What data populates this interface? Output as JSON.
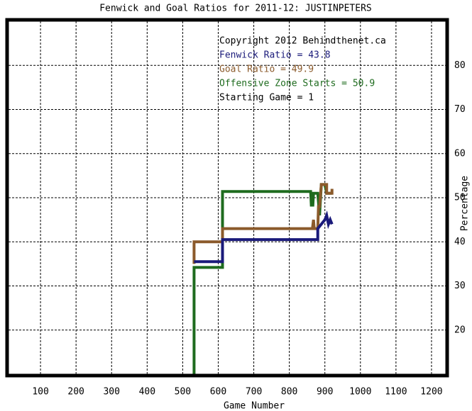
{
  "chart_data": {
    "type": "line",
    "title": "Fenwick and Goal Ratios for 2011-12: JUSTINPETERS",
    "x_label": "Game Number",
    "y_label": "Percentage",
    "xlim": [
      10,
      1240
    ],
    "xticks": [
      100,
      200,
      300,
      400,
      500,
      600,
      700,
      800,
      900,
      1000,
      1100,
      1200
    ],
    "ylim": [
      10,
      90
    ],
    "yticks": [
      20,
      30,
      40,
      50,
      60,
      70,
      80
    ],
    "grid": true,
    "annotations": [
      {
        "text": "Copyright 2012 Behindthenet.ca",
        "color": "#000000"
      },
      {
        "text": "Fenwick Ratio = 43.8",
        "color": "#1a1a7a"
      },
      {
        "text": "Goal Ratio = 49.9",
        "color": "#8b5a2b"
      },
      {
        "text": "Offensive Zone Starts = 50.9",
        "color": "#1e6b1e"
      },
      {
        "text": "Starting Game = 1",
        "color": "#000000"
      }
    ],
    "series": [
      {
        "color": "#1e6b1e",
        "x": [
          532,
          532,
          612,
          612,
          860,
          862,
          864,
          866,
          868,
          880,
          885,
          890,
          900,
          905,
          920
        ],
        "values": [
          10,
          34.2,
          34.2,
          51.4,
          51.4,
          48,
          51,
          48,
          51,
          51,
          46,
          53,
          53,
          51,
          51
        ]
      },
      {
        "color": "#8b5a2b",
        "x": [
          532,
          532,
          612,
          612,
          865,
          868,
          870,
          880,
          882,
          885,
          890,
          905,
          905,
          920,
          920
        ],
        "values": [
          35,
          40,
          40,
          43,
          43,
          45,
          43,
          43,
          48,
          48,
          53,
          53,
          51,
          51,
          52
        ]
      },
      {
        "color": "#1a1a7a",
        "x": [
          532,
          532,
          612,
          612,
          880,
          880,
          900,
          905,
          910,
          915,
          920
        ],
        "values": [
          35.5,
          35.5,
          35.5,
          40.5,
          40.5,
          43,
          45,
          46,
          44,
          45,
          44
        ]
      }
    ]
  }
}
